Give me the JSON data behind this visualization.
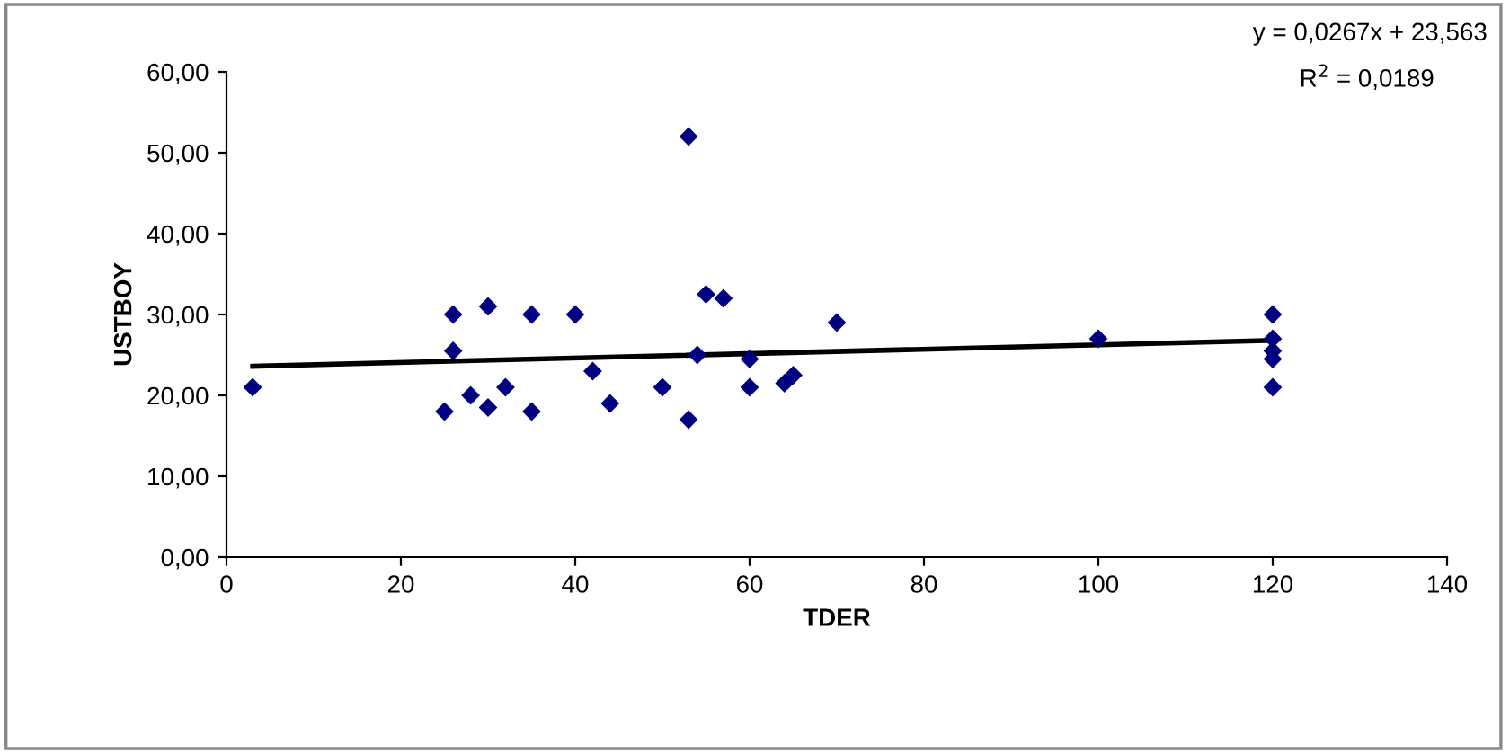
{
  "chart_data": {
    "type": "scatter",
    "xlabel": "TDER",
    "ylabel": "USTBOY",
    "annotations": [
      "y = 0,0267x + 23,563",
      "R$^{2}$ = 0,0189"
    ],
    "xlim": [
      0,
      140
    ],
    "xticks": [
      0,
      20,
      40,
      60,
      80,
      100,
      120,
      140
    ],
    "ylim": [
      0,
      60
    ],
    "yticks": [
      {
        "value": 0,
        "label": "0,00"
      },
      {
        "value": 10,
        "label": "10,00"
      },
      {
        "value": 20,
        "label": "20,00"
      },
      {
        "value": 30,
        "label": "30,00"
      },
      {
        "value": 40,
        "label": "40,00"
      },
      {
        "value": 50,
        "label": "50,00"
      },
      {
        "value": 60,
        "label": "60,00"
      }
    ],
    "grid": false,
    "legend": false,
    "series": [
      {
        "color": "#000080",
        "marker": "diamond",
        "x": [
          3,
          25,
          26,
          26,
          28,
          30,
          30,
          32,
          35,
          35,
          40,
          42,
          44,
          50,
          53,
          53,
          54,
          55,
          57,
          60,
          60,
          64,
          65,
          70,
          100,
          120,
          120,
          120,
          120,
          120
        ],
        "values": [
          21,
          18,
          30,
          25.5,
          20,
          31,
          18.5,
          21,
          30,
          18,
          30,
          23,
          19,
          21,
          52,
          17,
          25,
          32.5,
          32,
          24.5,
          21,
          21.5,
          22.5,
          29,
          27,
          30,
          27,
          25.5,
          24.5,
          21
        ]
      },
      {
        "type": "line",
        "color": "#000000",
        "x": [
          3,
          120
        ],
        "values": [
          23.6,
          26.8
        ],
        "line_style": "solid",
        "marker": "none"
      }
    ]
  }
}
